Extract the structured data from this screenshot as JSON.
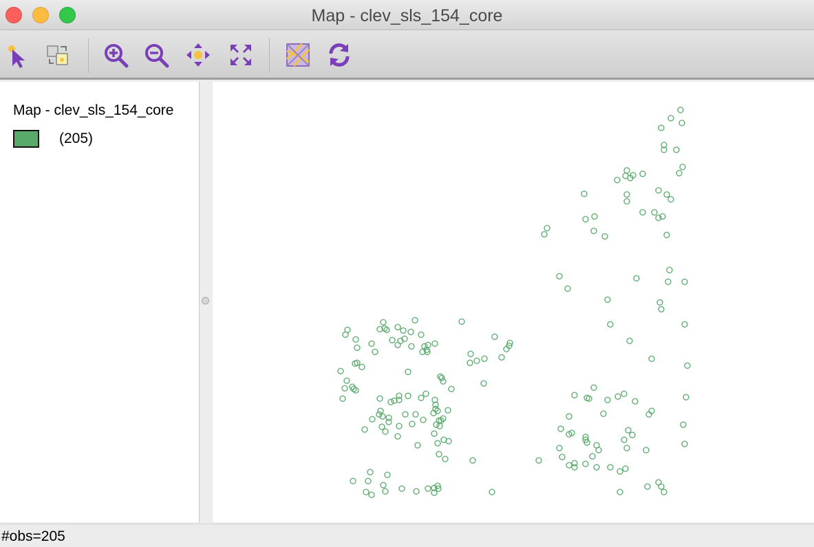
{
  "window": {
    "title": "Map - clev_sls_154_core"
  },
  "toolbar": {
    "buttons": [
      {
        "name": "select-tool-button",
        "icon": "arrow-pointer-icon"
      },
      {
        "name": "selection-shape-button",
        "icon": "selection-copy-icon"
      },
      {
        "name": "zoom-in-button",
        "icon": "zoom-in-icon"
      },
      {
        "name": "zoom-out-button",
        "icon": "zoom-out-icon"
      },
      {
        "name": "pan-button",
        "icon": "pan-arrows-icon"
      },
      {
        "name": "full-extent-button",
        "icon": "expand-arrows-icon"
      },
      {
        "name": "basemap-button",
        "icon": "basemap-icon"
      },
      {
        "name": "refresh-button",
        "icon": "refresh-icon"
      }
    ],
    "accent_color": "#7a3fb8"
  },
  "legend": {
    "title": "Map - clev_sls_154_core",
    "category_count": "(205)",
    "swatch_color": "#58a96a"
  },
  "map": {
    "point_color": "#58a96a",
    "point_count": 205
  },
  "status": {
    "text": "#obs=205"
  }
}
